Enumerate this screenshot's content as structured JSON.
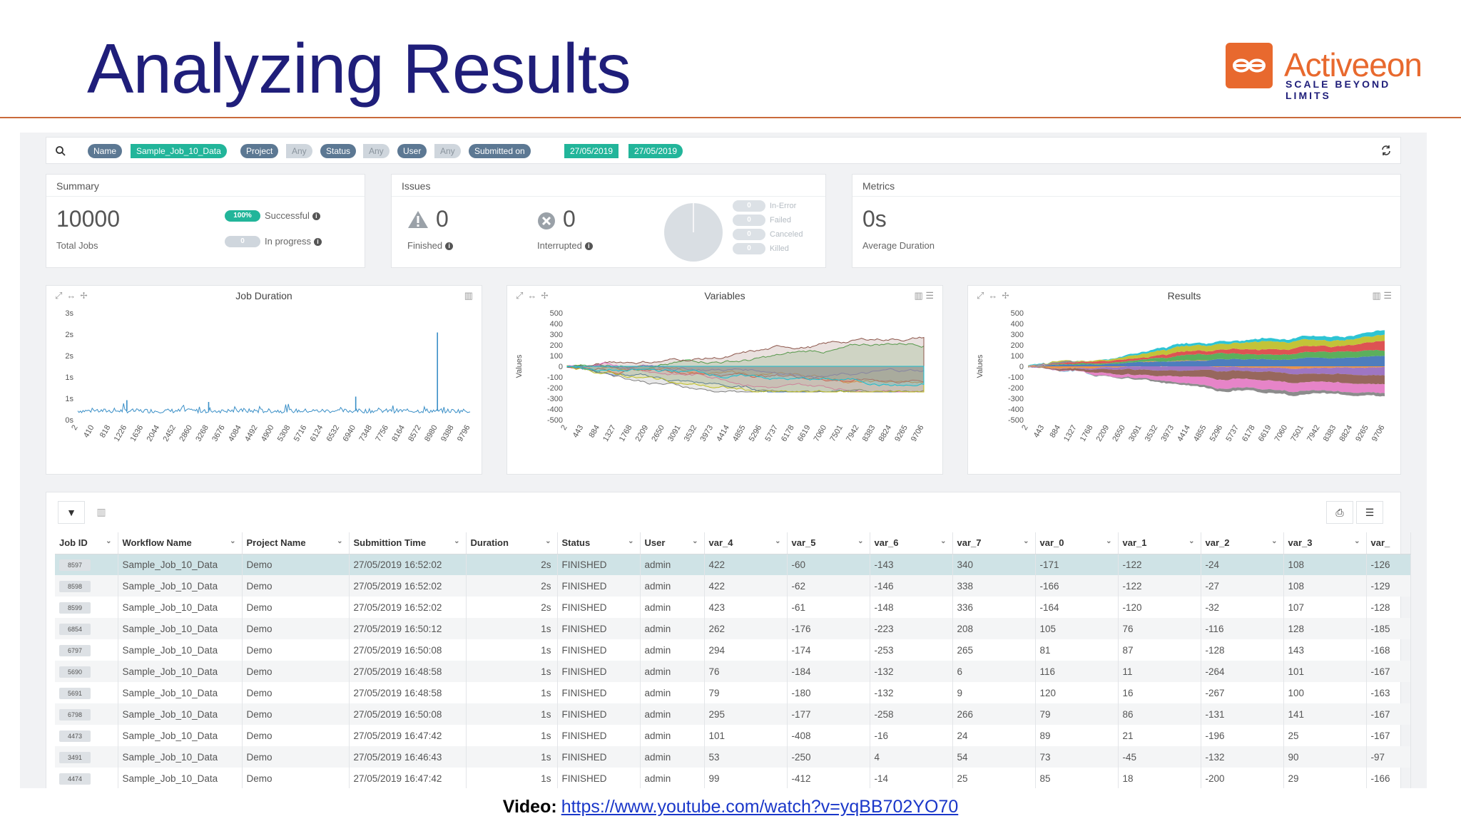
{
  "slide": {
    "title": "Analyzing Results",
    "brand": "Activeeon",
    "tagline": "SCALE BEYOND LIMITS",
    "footer_label": "Video:",
    "footer_link": "https://www.youtube.com/watch?v=yqBB702YO70"
  },
  "colors": {
    "accent": "#22b59a",
    "chip": "#5c7893",
    "title": "#1f1e7a",
    "brand": "#e8692e"
  },
  "filters": {
    "name_key": "Name",
    "name_val": "Sample_Job_10_Data",
    "project_key": "Project",
    "project_val": "Any",
    "status_key": "Status",
    "status_val": "Any",
    "user_key": "User",
    "user_val": "Any",
    "submitted_key": "Submitted on",
    "submitted_from": "27/05/2019",
    "submitted_to": "27/05/2019"
  },
  "summary": {
    "title": "Summary",
    "total": "10000",
    "total_label": "Total Jobs",
    "success_badge": "100%",
    "success_label": "Successful",
    "progress_badge": "0",
    "progress_label": "In progress"
  },
  "issues": {
    "title": "Issues",
    "finished_count": "0",
    "finished_label": "Finished",
    "interrupted_count": "0",
    "interrupted_label": "Interrupted",
    "legend": [
      {
        "count": "0",
        "label": "In-Error"
      },
      {
        "count": "0",
        "label": "Failed"
      },
      {
        "count": "0",
        "label": "Canceled"
      },
      {
        "count": "0",
        "label": "Killed"
      }
    ]
  },
  "metrics": {
    "title": "Metrics",
    "value": "0s",
    "label": "Average Duration"
  },
  "chart_data": [
    {
      "type": "line",
      "title": "Job Duration",
      "ylabel": "",
      "y_ticks": [
        "3s",
        "2s",
        "2s",
        "1s",
        "1s",
        "0s"
      ],
      "x_ticks": [
        "2",
        "410",
        "818",
        "1226",
        "1636",
        "2044",
        "2452",
        "2860",
        "3268",
        "3676",
        "4084",
        "4492",
        "4900",
        "5308",
        "5716",
        "6124",
        "6532",
        "6940",
        "7348",
        "7756",
        "8164",
        "8572",
        "8980",
        "9388",
        "9796"
      ],
      "ylim": [
        0,
        3
      ],
      "baseline": 0.25,
      "spikes": [
        {
          "x": 8980,
          "y": 2.45
        },
        {
          "x": 1226,
          "y": 0.55
        },
        {
          "x": 3268,
          "y": 0.5
        },
        {
          "x": 6940,
          "y": 0.65
        }
      ]
    },
    {
      "type": "area",
      "title": "Variables",
      "ylabel": "Values",
      "y_ticks": [
        "500",
        "400",
        "300",
        "200",
        "100",
        "0",
        "-100",
        "-200",
        "-300",
        "-400",
        "-500"
      ],
      "x_ticks": [
        "2",
        "443",
        "884",
        "1327",
        "1768",
        "2209",
        "2650",
        "3091",
        "3532",
        "3973",
        "4414",
        "4855",
        "5296",
        "5737",
        "6178",
        "6619",
        "7060",
        "7501",
        "7942",
        "8383",
        "8824",
        "9265",
        "9706"
      ],
      "ylim": [
        -500,
        500
      ],
      "series_count": 10
    },
    {
      "type": "area",
      "title": "Results",
      "ylabel": "Values",
      "y_ticks": [
        "500",
        "400",
        "300",
        "200",
        "100",
        "0",
        "-100",
        "-200",
        "-300",
        "-400",
        "-500"
      ],
      "x_ticks": [
        "2",
        "443",
        "884",
        "1327",
        "1768",
        "2209",
        "2650",
        "3091",
        "3532",
        "3973",
        "4414",
        "4855",
        "5296",
        "5737",
        "6178",
        "6619",
        "7060",
        "7501",
        "7942",
        "8383",
        "8824",
        "9265",
        "9706"
      ],
      "ylim": [
        -500,
        500
      ],
      "series_count": 10
    }
  ],
  "table": {
    "columns": [
      "Job ID",
      "Workflow Name",
      "Project Name",
      "Submittion Time",
      "Duration",
      "Status",
      "User",
      "var_4",
      "var_5",
      "var_6",
      "var_7",
      "var_0",
      "var_1",
      "var_2",
      "var_3",
      "var_"
    ],
    "rows": [
      [
        "8597",
        "Sample_Job_10_Data",
        "Demo",
        "27/05/2019 16:52:02",
        "2s",
        "FINISHED",
        "admin",
        "422",
        "-60",
        "-143",
        "340",
        "-171",
        "-122",
        "-24",
        "108",
        "-126"
      ],
      [
        "8598",
        "Sample_Job_10_Data",
        "Demo",
        "27/05/2019 16:52:02",
        "2s",
        "FINISHED",
        "admin",
        "422",
        "-62",
        "-146",
        "338",
        "-166",
        "-122",
        "-27",
        "108",
        "-129"
      ],
      [
        "8599",
        "Sample_Job_10_Data",
        "Demo",
        "27/05/2019 16:52:02",
        "2s",
        "FINISHED",
        "admin",
        "423",
        "-61",
        "-148",
        "336",
        "-164",
        "-120",
        "-32",
        "107",
        "-128"
      ],
      [
        "6854",
        "Sample_Job_10_Data",
        "Demo",
        "27/05/2019 16:50:12",
        "1s",
        "FINISHED",
        "admin",
        "262",
        "-176",
        "-223",
        "208",
        "105",
        "76",
        "-116",
        "128",
        "-185"
      ],
      [
        "6797",
        "Sample_Job_10_Data",
        "Demo",
        "27/05/2019 16:50:08",
        "1s",
        "FINISHED",
        "admin",
        "294",
        "-174",
        "-253",
        "265",
        "81",
        "87",
        "-128",
        "143",
        "-168"
      ],
      [
        "5690",
        "Sample_Job_10_Data",
        "Demo",
        "27/05/2019 16:48:58",
        "1s",
        "FINISHED",
        "admin",
        "76",
        "-184",
        "-132",
        "6",
        "116",
        "11",
        "-264",
        "101",
        "-167"
      ],
      [
        "5691",
        "Sample_Job_10_Data",
        "Demo",
        "27/05/2019 16:48:58",
        "1s",
        "FINISHED",
        "admin",
        "79",
        "-180",
        "-132",
        "9",
        "120",
        "16",
        "-267",
        "100",
        "-163"
      ],
      [
        "6798",
        "Sample_Job_10_Data",
        "Demo",
        "27/05/2019 16:50:08",
        "1s",
        "FINISHED",
        "admin",
        "295",
        "-177",
        "-258",
        "266",
        "79",
        "86",
        "-131",
        "141",
        "-167"
      ],
      [
        "4473",
        "Sample_Job_10_Data",
        "Demo",
        "27/05/2019 16:47:42",
        "1s",
        "FINISHED",
        "admin",
        "101",
        "-408",
        "-16",
        "24",
        "89",
        "21",
        "-196",
        "25",
        "-167"
      ],
      [
        "3491",
        "Sample_Job_10_Data",
        "Demo",
        "27/05/2019 16:46:43",
        "1s",
        "FINISHED",
        "admin",
        "53",
        "-250",
        "4",
        "54",
        "73",
        "-45",
        "-132",
        "90",
        "-97"
      ],
      [
        "4474",
        "Sample_Job_10_Data",
        "Demo",
        "27/05/2019 16:47:42",
        "1s",
        "FINISHED",
        "admin",
        "99",
        "-412",
        "-14",
        "25",
        "85",
        "18",
        "-200",
        "29",
        "-166"
      ]
    ]
  }
}
